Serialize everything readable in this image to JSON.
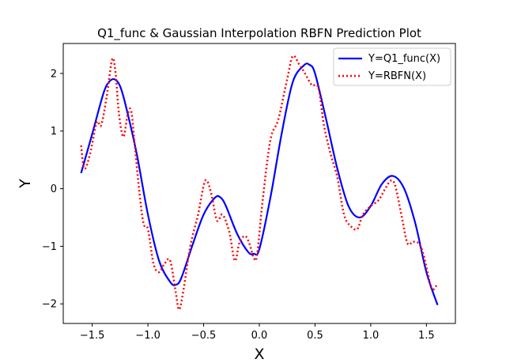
{
  "chart_data": {
    "type": "line",
    "title": "Q1_func & Gaussian Interpolation RBFN Prediction Plot",
    "xlabel": "X",
    "ylabel": "Y",
    "xlim": [
      -1.76,
      1.76
    ],
    "ylim": [
      -2.34,
      2.52
    ],
    "x_ticks": [
      -1.5,
      -1.0,
      -0.5,
      0.0,
      0.5,
      1.0,
      1.5
    ],
    "x_tick_labels": [
      "−1.5",
      "−1.0",
      "−0.5",
      "0.0",
      "0.5",
      "1.0",
      "1.5"
    ],
    "y_ticks": [
      -2,
      -1,
      0,
      1,
      2
    ],
    "y_tick_labels": [
      "−2",
      "−1",
      "0",
      "1",
      "2"
    ],
    "grid": false,
    "legend_position": "top-right",
    "series": [
      {
        "name": "Y=Q1_func(X)",
        "color": "#0000ff",
        "style": "solid",
        "x": [
          -1.6,
          -1.5,
          -1.4,
          -1.35,
          -1.3,
          -1.25,
          -1.2,
          -1.1,
          -1.0,
          -0.9,
          -0.8,
          -0.75,
          -0.7,
          -0.6,
          -0.5,
          -0.4,
          -0.35,
          -0.3,
          -0.2,
          -0.1,
          -0.05,
          0.0,
          0.1,
          0.2,
          0.3,
          0.4,
          0.45,
          0.5,
          0.6,
          0.7,
          0.8,
          0.9,
          1.0,
          1.1,
          1.2,
          1.3,
          1.4,
          1.5,
          1.6
        ],
        "y": [
          0.27,
          0.95,
          1.65,
          1.85,
          1.9,
          1.78,
          1.45,
          0.6,
          -0.45,
          -1.25,
          -1.62,
          -1.67,
          -1.55,
          -0.98,
          -0.45,
          -0.16,
          -0.15,
          -0.3,
          -0.78,
          -1.1,
          -1.13,
          -1.05,
          -0.15,
          0.95,
          1.85,
          2.14,
          2.15,
          2.0,
          1.2,
          0.35,
          -0.3,
          -0.5,
          -0.3,
          0.08,
          0.22,
          0.0,
          -0.6,
          -1.45,
          -2.02
        ]
      },
      {
        "name": "Y=RBFN(X)",
        "color": "#ff0000",
        "style": "dotted",
        "x": [
          -1.6,
          -1.57,
          -1.52,
          -1.46,
          -1.42,
          -1.37,
          -1.32,
          -1.29,
          -1.26,
          -1.22,
          -1.18,
          -1.15,
          -1.12,
          -1.08,
          -1.04,
          -1.0,
          -0.95,
          -0.9,
          -0.85,
          -0.8,
          -0.75,
          -0.72,
          -0.68,
          -0.62,
          -0.55,
          -0.5,
          -0.47,
          -0.43,
          -0.38,
          -0.33,
          -0.27,
          -0.22,
          -0.18,
          -0.13,
          -0.09,
          -0.05,
          -0.02,
          0.03,
          0.1,
          0.17,
          0.25,
          0.3,
          0.36,
          0.41,
          0.47,
          0.53,
          0.58,
          0.64,
          0.7,
          0.76,
          0.82,
          0.88,
          0.93,
          1.0,
          1.07,
          1.13,
          1.18,
          1.22,
          1.28,
          1.33,
          1.38,
          1.43,
          1.47,
          1.51,
          1.55,
          1.6
        ],
        "y": [
          0.75,
          0.35,
          0.6,
          1.15,
          1.1,
          1.6,
          2.25,
          2.0,
          1.3,
          0.9,
          1.3,
          1.35,
          0.8,
          0.0,
          -0.6,
          -0.7,
          -1.3,
          -1.45,
          -1.3,
          -1.25,
          -1.8,
          -2.1,
          -1.75,
          -1.0,
          -0.45,
          0.05,
          0.14,
          -0.1,
          -0.55,
          -0.45,
          -0.75,
          -1.25,
          -0.95,
          -0.82,
          -0.95,
          -1.2,
          -1.15,
          -0.2,
          0.85,
          1.2,
          1.9,
          2.3,
          2.15,
          2.0,
          1.8,
          1.75,
          1.1,
          0.6,
          0.2,
          -0.45,
          -0.65,
          -0.7,
          -0.45,
          -0.3,
          -0.2,
          0.0,
          0.14,
          0.05,
          -0.5,
          -0.95,
          -0.92,
          -0.95,
          -1.12,
          -1.45,
          -1.75,
          -1.65
        ]
      }
    ]
  }
}
